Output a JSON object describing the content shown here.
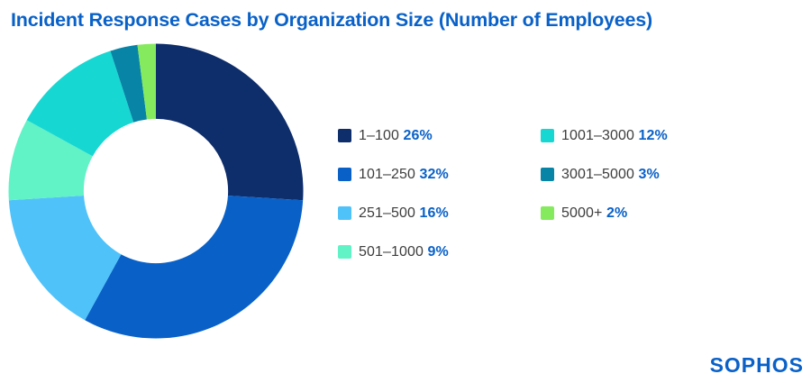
{
  "title": "Incident Response Cases by Organization Size (Number of Employees)",
  "logo": "SOPHOS",
  "colors": {
    "accent_blue": "#0961c8",
    "label_gray": "#3d3d3d",
    "background": "#ffffff"
  },
  "chart_data": {
    "type": "pie",
    "variant": "donut",
    "title": "Incident Response Cases by Organization Size (Number of Employees)",
    "categories": [
      "1–100",
      "101–250",
      "251–500",
      "501–1000",
      "1001–3000",
      "3001–5000",
      "5000+"
    ],
    "values": [
      26,
      32,
      16,
      9,
      12,
      3,
      2
    ],
    "unit": "%",
    "colors": [
      "#0d2d6b",
      "#0961c8",
      "#4fc2fa",
      "#61f2c6",
      "#17d7d2",
      "#0884a6",
      "#85ea5e"
    ],
    "start_angle_deg": 0,
    "direction": "clockwise",
    "inner_radius_ratio": 0.49,
    "legend_position": "right",
    "legend_columns": 2,
    "legend_rows_per_column": [
      4,
      3
    ]
  }
}
